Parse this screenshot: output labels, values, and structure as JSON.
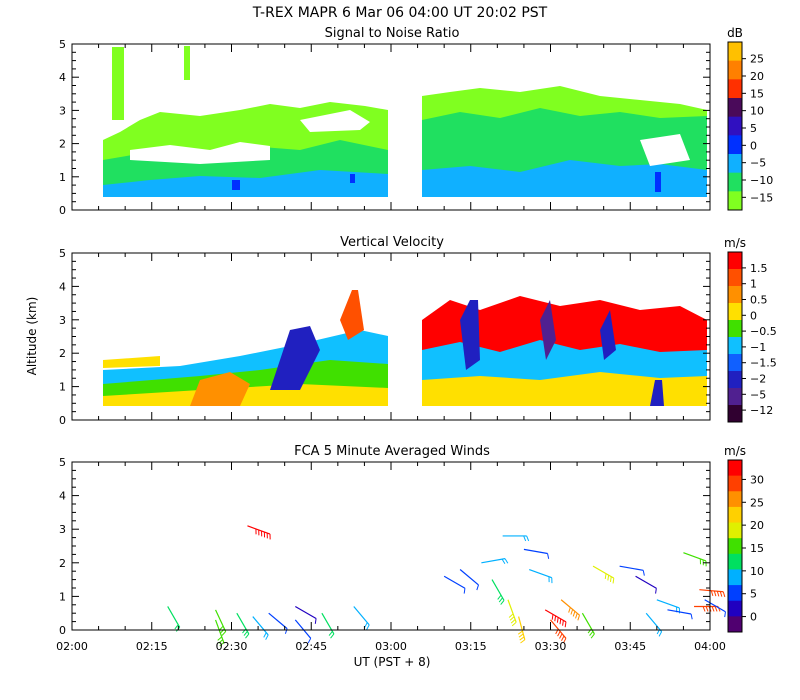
{
  "figure_title": "T-REX   MAPR   6 Mar 06   04:00 UT   20:02   PST",
  "chart_data": [
    {
      "type": "heatmap",
      "title": "Signal to Noise Ratio",
      "ylabel": "",
      "ylim": [
        0,
        5
      ],
      "yticks": [
        "0",
        "1",
        "2",
        "3",
        "4",
        "5"
      ],
      "xticks": [
        "02:00",
        "02:15",
        "02:30",
        "02:45",
        "03:00",
        "03:15",
        "03:30",
        "03:45",
        "04:00"
      ],
      "data_gaps_utc": [
        [
          "03:00",
          "03:06"
        ]
      ],
      "colorbar": {
        "unit": "dB",
        "labels": [
          "25",
          "20",
          "15",
          "10",
          "5",
          "0",
          "−5",
          "−10",
          "−15"
        ],
        "colors": [
          "#ffc000",
          "#ff8000",
          "#ff3000",
          "#4a0a5a",
          "#3010c0",
          "#0030ff",
          "#10b0ff",
          "#20e060",
          "#80ff20"
        ]
      },
      "notes": "SNR mostly -15 to -5 dB from 0.4 to 3.5 km; highest near surface (~0 dB)."
    },
    {
      "type": "heatmap",
      "title": "Vertical Velocity",
      "ylabel": "Altitude  (km)",
      "ylim": [
        0,
        5
      ],
      "yticks": [
        "0",
        "1",
        "2",
        "3",
        "4",
        "5"
      ],
      "xticks": [
        "02:00",
        "02:15",
        "02:30",
        "02:45",
        "03:00",
        "03:15",
        "03:30",
        "03:45",
        "04:00"
      ],
      "colorbar": {
        "unit": "m/s",
        "labels": [
          "1.5",
          "1",
          "0.5",
          "0",
          "−0.5",
          "−1",
          "−1.5",
          "−2",
          "−5",
          "−12"
        ],
        "colors": [
          "#ff0000",
          "#ff5000",
          "#ff9000",
          "#ffe000",
          "#40e000",
          "#10c0ff",
          "#1060ff",
          "#2020c0",
          "#502090",
          "#300030"
        ]
      },
      "notes": "Mixed updrafts (red) and downdrafts (blue/purple) between 0.4 and 3.8 km."
    },
    {
      "type": "scatter",
      "title": "FCA 5 Minute Averaged Winds",
      "ylabel": "",
      "xlabel": "UT  (PST + 8)",
      "ylim": [
        0,
        5
      ],
      "yticks": [
        "0",
        "1",
        "2",
        "3",
        "4",
        "5"
      ],
      "xticks": [
        "02:00",
        "02:15",
        "02:30",
        "02:45",
        "03:00",
        "03:15",
        "03:30",
        "03:45",
        "04:00"
      ],
      "colorbar": {
        "unit": "m/s",
        "labels": [
          "30",
          "25",
          "20",
          "15",
          "10",
          "5",
          "0"
        ],
        "colors": [
          "#ff0000",
          "#ff4000",
          "#ff9000",
          "#ffd000",
          "#e0f000",
          "#40e000",
          "#00e060",
          "#00b0ff",
          "#0040ff",
          "#2000c0",
          "#500070"
        ]
      },
      "barbs": [
        {
          "t": 18,
          "alt": 0.7,
          "speed": 12,
          "dir": 330
        },
        {
          "t": 27,
          "alt": 0.6,
          "speed": 16,
          "dir": 335
        },
        {
          "t": 27,
          "alt": 0.3,
          "speed": 14,
          "dir": 340
        },
        {
          "t": 31,
          "alt": 0.5,
          "speed": 13,
          "dir": 330
        },
        {
          "t": 34,
          "alt": 0.4,
          "speed": 10,
          "dir": 320
        },
        {
          "t": 37,
          "alt": 0.5,
          "speed": 6,
          "dir": 310
        },
        {
          "t": 42,
          "alt": 0.7,
          "speed": 4,
          "dir": 300
        },
        {
          "t": 42,
          "alt": 0.3,
          "speed": 6,
          "dir": 320
        },
        {
          "t": 47,
          "alt": 0.5,
          "speed": 12,
          "dir": 330
        },
        {
          "t": 53,
          "alt": 0.7,
          "speed": 9,
          "dir": 320
        },
        {
          "t": 33,
          "alt": 3.1,
          "speed": 29,
          "dir": 290
        },
        {
          "t": 70,
          "alt": 1.6,
          "speed": 7,
          "dir": 300
        },
        {
          "t": 73,
          "alt": 1.8,
          "speed": 5,
          "dir": 310
        },
        {
          "t": 77,
          "alt": 2.0,
          "speed": 10,
          "dir": 260
        },
        {
          "t": 79,
          "alt": 1.5,
          "speed": 13,
          "dir": 330
        },
        {
          "t": 81,
          "alt": 2.8,
          "speed": 8,
          "dir": 270
        },
        {
          "t": 82,
          "alt": 0.9,
          "speed": 18,
          "dir": 340
        },
        {
          "t": 84,
          "alt": 0.4,
          "speed": 20,
          "dir": 345
        },
        {
          "t": 85,
          "alt": 2.4,
          "speed": 5,
          "dir": 280
        },
        {
          "t": 86,
          "alt": 1.8,
          "speed": 9,
          "dir": 290
        },
        {
          "t": 89,
          "alt": 0.6,
          "speed": 29,
          "dir": 300
        },
        {
          "t": 90,
          "alt": 0.3,
          "speed": 27,
          "dir": 320
        },
        {
          "t": 92,
          "alt": 0.9,
          "speed": 24,
          "dir": 310
        },
        {
          "t": 96,
          "alt": 0.5,
          "speed": 15,
          "dir": 330
        },
        {
          "t": 98,
          "alt": 1.9,
          "speed": 18,
          "dir": 300
        },
        {
          "t": 103,
          "alt": 1.9,
          "speed": 6,
          "dir": 280
        },
        {
          "t": 106,
          "alt": 1.6,
          "speed": 3,
          "dir": 300
        },
        {
          "t": 108,
          "alt": 0.5,
          "speed": 9,
          "dir": 320
        },
        {
          "t": 110,
          "alt": 0.9,
          "speed": 8,
          "dir": 290
        },
        {
          "t": 112,
          "alt": 0.6,
          "speed": 5,
          "dir": 280
        },
        {
          "t": 115,
          "alt": 2.3,
          "speed": 16,
          "dir": 290
        },
        {
          "t": 117,
          "alt": 0.7,
          "speed": 28,
          "dir": 270
        },
        {
          "t": 118,
          "alt": 1.2,
          "speed": 26,
          "dir": 275
        },
        {
          "t": 119,
          "alt": 0.9,
          "speed": 7,
          "dir": 300
        }
      ]
    }
  ]
}
